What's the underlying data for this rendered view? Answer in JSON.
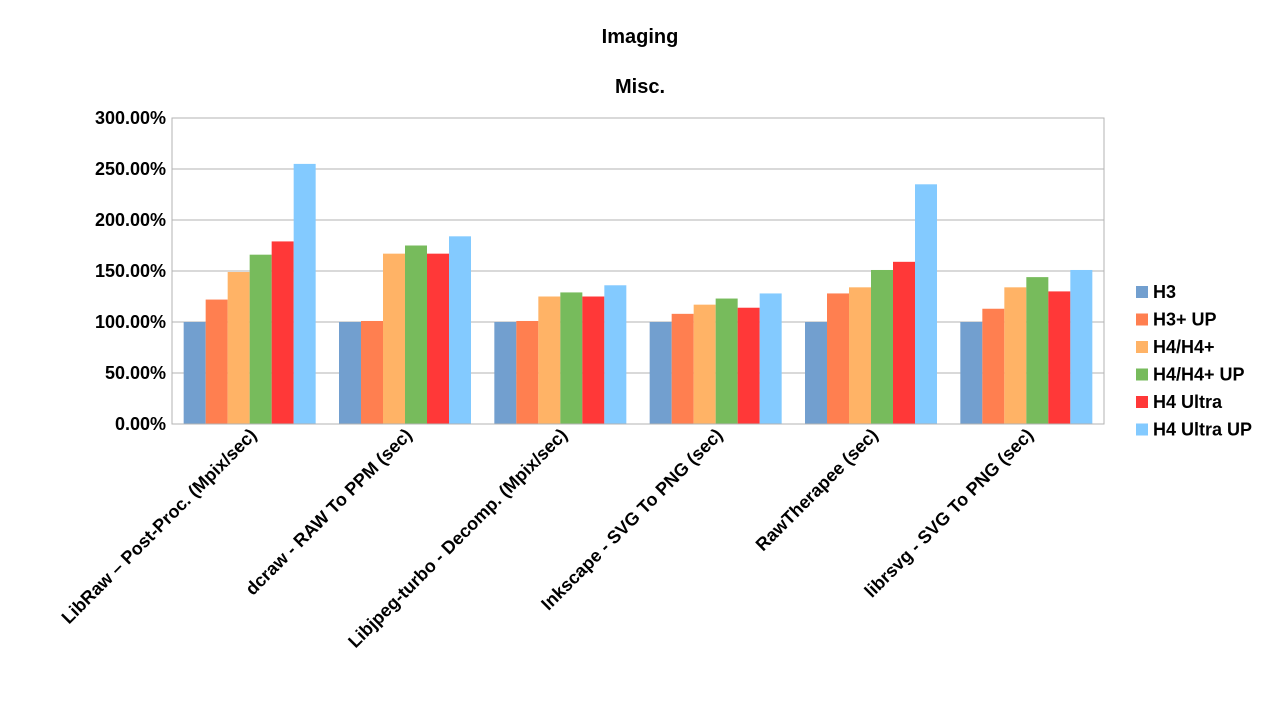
{
  "chart_data": {
    "type": "bar",
    "title": "Imaging",
    "subtitle": "Misc.",
    "categories": [
      "LibRaw – Post-Proc. (Mpix/sec)",
      "dcraw - RAW To PPM (sec)",
      "Libjpeg-turbo - Decomp. (Mpix/sec)",
      "Inkscape - SVG To PNG (sec)",
      "RawTherapee (sec)",
      "librsvg - SVG To PNG (sec)"
    ],
    "series": [
      {
        "name": "H3",
        "color": "#729fcf",
        "values": [
          100,
          100,
          100,
          100,
          100,
          100
        ]
      },
      {
        "name": "H3+ UP",
        "color": "#ff7f50",
        "values": [
          122,
          101,
          101,
          108,
          128,
          113
        ]
      },
      {
        "name": "H4/H4+",
        "color": "#ffb366",
        "values": [
          149,
          167,
          125,
          117,
          134,
          134
        ]
      },
      {
        "name": "H4/H4+ UP",
        "color": "#77bb5c",
        "values": [
          166,
          175,
          129,
          123,
          151,
          144
        ]
      },
      {
        "name": "H4 Ultra",
        "color": "#ff3838",
        "values": [
          179,
          167,
          125,
          114,
          159,
          130
        ]
      },
      {
        "name": "H4 Ultra UP",
        "color": "#83caff",
        "values": [
          255,
          184,
          136,
          128,
          235,
          151
        ]
      }
    ],
    "yticks": [
      "0.00%",
      "50.00%",
      "100.00%",
      "150.00%",
      "200.00%",
      "250.00%",
      "300.00%"
    ],
    "ylim": [
      0,
      300
    ],
    "ylabel": "",
    "xlabel": "",
    "grid": true,
    "legend": "right"
  }
}
